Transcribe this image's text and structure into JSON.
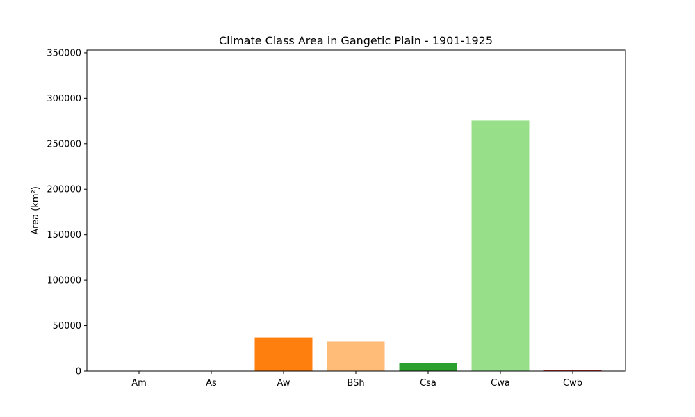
{
  "chart_data": {
    "type": "bar",
    "title": "Climate Class Area in Gangetic Plain - 1901-1925",
    "xlabel": "",
    "ylabel": "Area (km²)",
    "categories": [
      "Am",
      "As",
      "Aw",
      "BSh",
      "Csa",
      "Cwa",
      "Cwb"
    ],
    "values": [
      0,
      0,
      37000,
      32500,
      8500,
      275500,
      1000
    ],
    "colors": [
      "#1f77b4",
      "#aec7e8",
      "#ff7f0e",
      "#ffbb78",
      "#2ca02c",
      "#98df8a",
      "#d62728"
    ],
    "ylim": [
      0,
      353000
    ],
    "yticks": [
      0,
      50000,
      100000,
      150000,
      200000,
      250000,
      300000,
      350000
    ],
    "grid": false
  }
}
